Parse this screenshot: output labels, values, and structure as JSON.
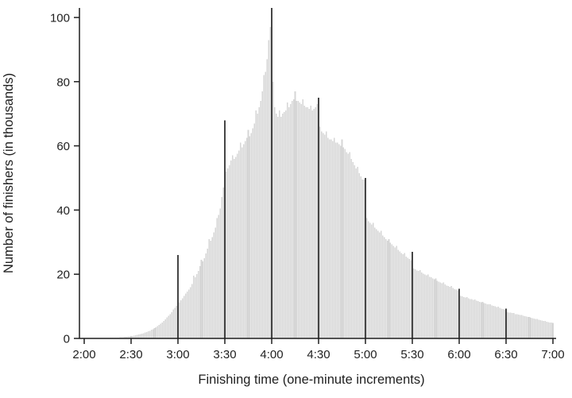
{
  "chart_data": {
    "type": "bar",
    "title": "",
    "xlabel": "Finishing time (one-minute increments)",
    "ylabel": "Number of finishers (in thousands)",
    "x_tick_labels": [
      "2:00",
      "2:30",
      "3:00",
      "3:30",
      "4:00",
      "4:30",
      "5:00",
      "5:30",
      "6:00",
      "6:30",
      "7:00"
    ],
    "y_ticks": [
      0,
      20,
      40,
      60,
      80,
      100
    ],
    "ylim": [
      0,
      105
    ],
    "x_start_minute": 120,
    "x_end_minute": 420,
    "bin_width_minutes": 1,
    "grid": false,
    "legend": "none",
    "bar_color": "#d6d6d6",
    "spike_color": "#454545",
    "axis_color": "#1f1f1f",
    "spike_minutes": [
      180,
      210,
      240,
      270,
      300,
      330,
      360,
      390
    ],
    "values": [
      0.05,
      0.05,
      0.06,
      0.06,
      0.07,
      0.07,
      0.08,
      0.08,
      0.09,
      0.1,
      0.1,
      0.11,
      0.12,
      0.13,
      0.14,
      0.15,
      0.17,
      0.19,
      0.21,
      0.23,
      0.25,
      0.28,
      0.31,
      0.34,
      0.37,
      0.4,
      0.45,
      0.5,
      0.56,
      0.63,
      0.7,
      0.8,
      0.9,
      1.0,
      1.1,
      1.2,
      1.35,
      1.5,
      1.65,
      1.8,
      2.0,
      2.2,
      2.4,
      2.7,
      2.9,
      3.2,
      3.5,
      3.8,
      4.2,
      4.6,
      5.0,
      5.5,
      6.0,
      6.5,
      7.0,
      7.5,
      8.2,
      9.0,
      9.5,
      10.2,
      26,
      11.3,
      11.9,
      12.5,
      13.2,
      14.0,
      14.6,
      15.2,
      16.0,
      17.0,
      19.5,
      19.0,
      20.0,
      21.0,
      22.5,
      24.5,
      24.0,
      25.0,
      26.5,
      28.0,
      31.0,
      30.5,
      31.5,
      33.0,
      34.5,
      37.5,
      38.5,
      40.5,
      44.0,
      47.0,
      68,
      52,
      53,
      54,
      55.5,
      57,
      56,
      56.5,
      57.5,
      58.5,
      61,
      59.5,
      60.5,
      61.5,
      62.5,
      65,
      63,
      64,
      65.5,
      67,
      71,
      70,
      72,
      74,
      77,
      82,
      83,
      87,
      93,
      97,
      103,
      80,
      72,
      70,
      69,
      71,
      69,
      70,
      70.5,
      71,
      73.5,
      72,
      73,
      74,
      74.5,
      77,
      74,
      74,
      73.5,
      73,
      74.5,
      72.5,
      72,
      72,
      71.5,
      72.5,
      71,
      71.5,
      72,
      73,
      75,
      66,
      64.5,
      64,
      63.5,
      64.5,
      62.5,
      62,
      62,
      61.5,
      62.5,
      61,
      61,
      60.5,
      60,
      62,
      59.5,
      59,
      58,
      57.5,
      58,
      56,
      55,
      54,
      53,
      53.5,
      51.5,
      50.5,
      49.5,
      49.5,
      50,
      37.5,
      36.5,
      36,
      35.5,
      36,
      34.5,
      34,
      33.5,
      33,
      33.5,
      32,
      31.5,
      31,
      30.5,
      31,
      29.8,
      29.3,
      28.8,
      28.3,
      28.8,
      27.6,
      27.1,
      26.6,
      26.2,
      26.6,
      25.5,
      25.1,
      24.7,
      24.4,
      27,
      21.8,
      21.5,
      21.2,
      21,
      21.3,
      20.5,
      20.2,
      19.9,
      19.7,
      19.9,
      19.2,
      19,
      18.7,
      18.5,
      18.7,
      18,
      17.7,
      17.5,
      17.2,
      17.4,
      16.8,
      16.5,
      16.3,
      16.1,
      16.3,
      15.7,
      15.4,
      15.2,
      15,
      15.5,
      13.3,
      13.1,
      12.9,
      12.8,
      12.9,
      12.5,
      12.3,
      12.2,
      12,
      12.1,
      11.8,
      11.6,
      11.4,
      11.3,
      11.4,
      11,
      10.9,
      10.7,
      10.6,
      10.7,
      10.3,
      10.1,
      10,
      9.8,
      9.9,
      9.5,
      9.3,
      9.1,
      9,
      9.3,
      8.2,
      8.1,
      8,
      7.9,
      7.9,
      7.6,
      7.5,
      7.4,
      7.3,
      7.3,
      7,
      6.9,
      6.8,
      6.7,
      6.7,
      6.4,
      6.3,
      6.2,
      6.1,
      6.1,
      5.8,
      5.7,
      5.6,
      5.5,
      5.5,
      5.2,
      5.1,
      5,
      4.9,
      4.8
    ]
  }
}
